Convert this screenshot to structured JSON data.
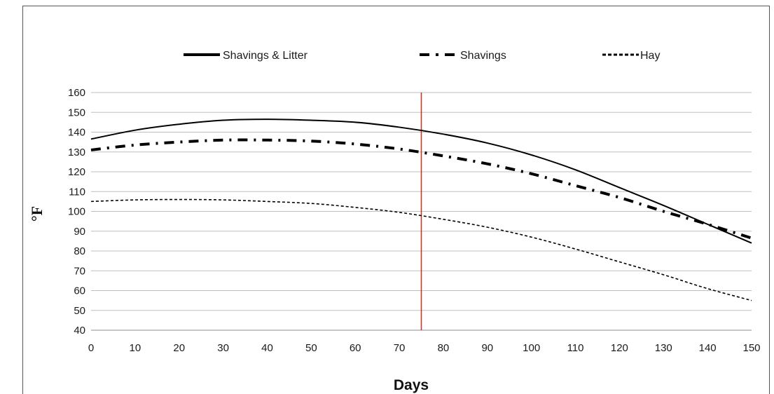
{
  "chart_data": {
    "type": "line",
    "title": "",
    "xlabel": "Days",
    "ylabel": "°F",
    "xlim": [
      0,
      150
    ],
    "ylim": [
      40,
      160
    ],
    "x_ticks": [
      0,
      10,
      20,
      30,
      40,
      50,
      60,
      70,
      80,
      90,
      100,
      110,
      120,
      130,
      140,
      150
    ],
    "y_ticks": [
      40,
      50,
      60,
      70,
      80,
      90,
      100,
      110,
      120,
      130,
      140,
      150,
      160
    ],
    "grid": "horizontal",
    "legend_position": "top",
    "reference_line": {
      "x": 75,
      "color": "#c0392b"
    },
    "x": [
      0,
      10,
      20,
      30,
      40,
      50,
      60,
      70,
      80,
      90,
      100,
      110,
      120,
      130,
      140,
      150
    ],
    "series": [
      {
        "name": "Shavings & Litter",
        "style": "solid",
        "color": "#000000",
        "values": [
          136.5,
          141,
          144,
          146,
          146.5,
          146,
          145,
          142.5,
          139,
          134.5,
          128.5,
          121,
          112,
          103,
          93.5,
          84
        ]
      },
      {
        "name": "Shavings",
        "style": "dashdot",
        "color": "#000000",
        "values": [
          131,
          133.5,
          135,
          136,
          136,
          135.5,
          134,
          131.5,
          128,
          124,
          119,
          113,
          107,
          100,
          93.5,
          86.5
        ]
      },
      {
        "name": "Hay",
        "style": "dotted",
        "color": "#000000",
        "values": [
          105,
          105.8,
          106,
          105.8,
          105,
          104,
          102,
          99.5,
          96,
          92,
          87,
          81,
          74.5,
          68,
          61,
          55
        ]
      }
    ]
  }
}
